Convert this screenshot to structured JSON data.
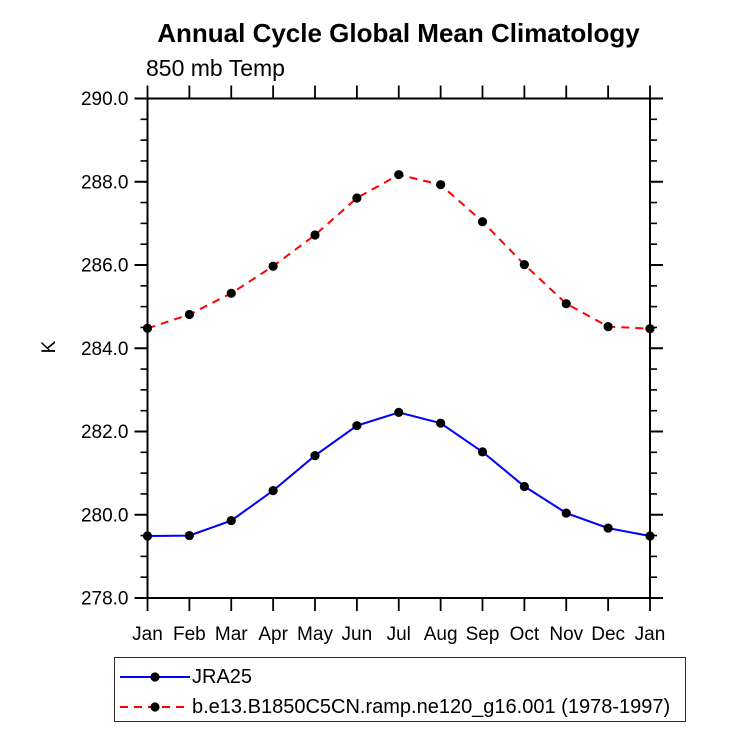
{
  "chart_data": {
    "type": "line",
    "title": "Annual Cycle Global Mean Climatology",
    "subtitle": "850 mb Temp",
    "ylabel": "K",
    "xlabel": "",
    "x": [
      "Jan",
      "Feb",
      "Mar",
      "Apr",
      "May",
      "Jun",
      "Jul",
      "Aug",
      "Sep",
      "Oct",
      "Nov",
      "Dec",
      "Jan"
    ],
    "ylim": [
      278.0,
      290.0
    ],
    "ytick_major_step": 2.0,
    "ytick_minor_step": 0.5,
    "ytick_decimals": 1,
    "grid": false,
    "axis_color": "#000000",
    "marker_color": "#000000",
    "legend_position": "bottom-left-boxed",
    "series": [
      {
        "name": "JRA25",
        "color": "#0000FF",
        "line_style": "solid",
        "marker": "circle",
        "values": [
          279.49,
          279.5,
          279.86,
          280.58,
          281.42,
          282.14,
          282.46,
          282.2,
          281.51,
          280.68,
          280.04,
          279.68,
          279.49
        ]
      },
      {
        "name": "b.e13.B1850C5CN.ramp.ne120_g16.001 (1978-1997)",
        "color": "#FF0000",
        "line_style": "dashed",
        "marker": "circle",
        "values": [
          284.48,
          284.81,
          285.32,
          285.97,
          286.72,
          287.61,
          288.17,
          287.93,
          287.04,
          286.01,
          285.07,
          284.52,
          284.47
        ]
      }
    ]
  }
}
